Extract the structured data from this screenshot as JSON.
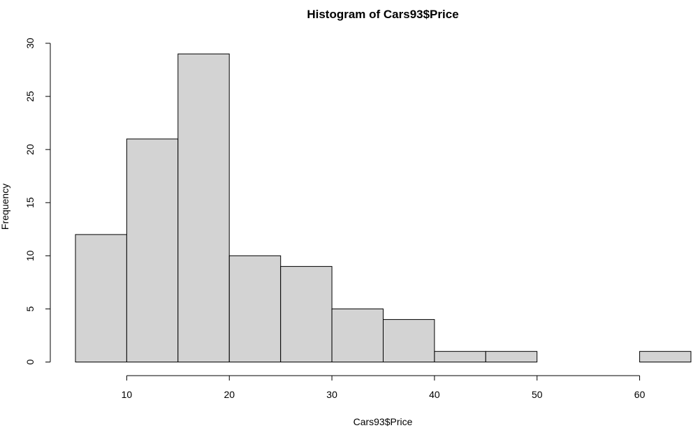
{
  "chart_data": {
    "type": "histogram",
    "title": "Histogram of Cars93$Price",
    "xlabel": "Cars93$Price",
    "ylabel": "Frequency",
    "bins": [
      {
        "start": 5,
        "end": 10,
        "count": 12
      },
      {
        "start": 10,
        "end": 15,
        "count": 21
      },
      {
        "start": 15,
        "end": 20,
        "count": 29
      },
      {
        "start": 20,
        "end": 25,
        "count": 10
      },
      {
        "start": 25,
        "end": 30,
        "count": 9
      },
      {
        "start": 30,
        "end": 35,
        "count": 5
      },
      {
        "start": 35,
        "end": 40,
        "count": 4
      },
      {
        "start": 40,
        "end": 45,
        "count": 1
      },
      {
        "start": 45,
        "end": 50,
        "count": 1
      },
      {
        "start": 50,
        "end": 55,
        "count": 0
      },
      {
        "start": 55,
        "end": 60,
        "count": 0
      },
      {
        "start": 60,
        "end": 65,
        "count": 1
      }
    ],
    "xticks": [
      10,
      20,
      30,
      40,
      50,
      60
    ],
    "yticks": [
      0,
      5,
      10,
      15,
      20,
      25,
      30
    ],
    "xlim": [
      5,
      65
    ],
    "ylim": [
      0,
      30
    ],
    "bar_color": "#d3d3d3",
    "edge_color": "#000000",
    "grid": false,
    "legend": "none"
  }
}
